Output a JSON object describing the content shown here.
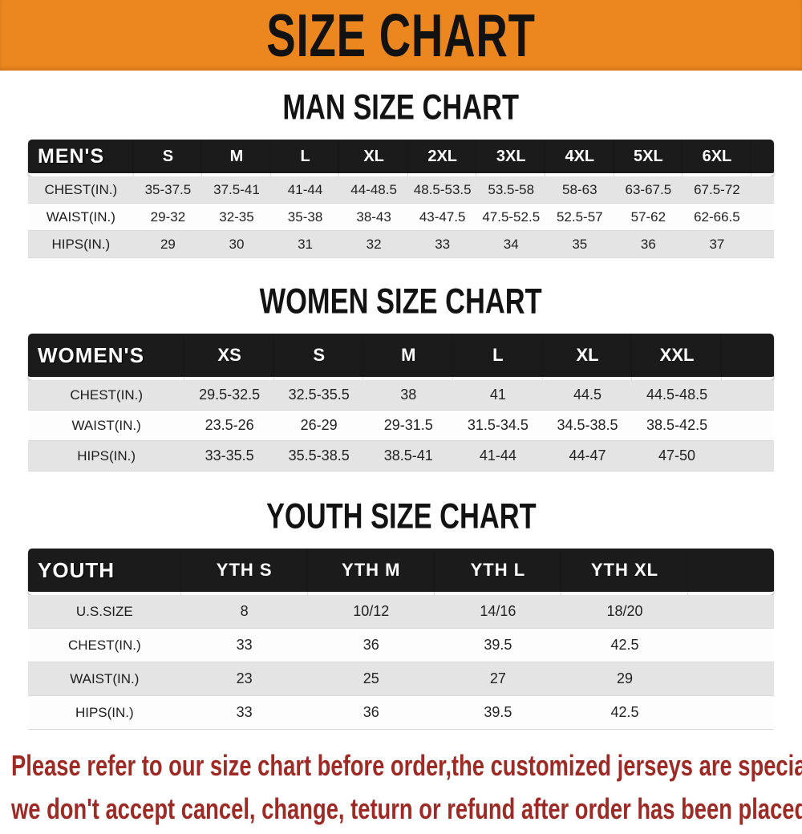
{
  "banner": {
    "title": "SIZE CHART",
    "background_color": "#EC861E",
    "text_color": "#121212"
  },
  "sections": [
    {
      "title": "MAN SIZE CHART",
      "table": {
        "header_label": "MEN'S",
        "columns": [
          "S",
          "M",
          "L",
          "XL",
          "2XL",
          "3XL",
          "4XL",
          "5XL",
          "6XL"
        ],
        "rows": [
          {
            "label": "CHEST(IN.)",
            "values": [
              "35-37.5",
              "37.5-41",
              "41-44",
              "44-48.5",
              "48.5-53.5",
              "53.5-58",
              "58-63",
              "63-67.5",
              "67.5-72"
            ]
          },
          {
            "label": "WAIST(IN.)",
            "values": [
              "29-32",
              "32-35",
              "35-38",
              "38-43",
              "43-47.5",
              "47.5-52.5",
              "52.5-57",
              "57-62",
              "62-66.5"
            ]
          },
          {
            "label": "HIPS(IN.)",
            "values": [
              "29",
              "30",
              "31",
              "32",
              "33",
              "34",
              "35",
              "36",
              "37"
            ]
          }
        ]
      }
    },
    {
      "title": "WOMEN SIZE CHART",
      "table": {
        "header_label": "WOMEN'S",
        "columns": [
          "XS",
          "S",
          "M",
          "L",
          "XL",
          "XXL"
        ],
        "rows": [
          {
            "label": "CHEST(IN.)",
            "values": [
              "29.5-32.5",
              "32.5-35.5",
              "38",
              "41",
              "44.5",
              "44.5-48.5"
            ]
          },
          {
            "label": "WAIST(IN.)",
            "values": [
              "23.5-26",
              "26-29",
              "29-31.5",
              "31.5-34.5",
              "34.5-38.5",
              "38.5-42.5"
            ]
          },
          {
            "label": "HIPS(IN.)",
            "values": [
              "33-35.5",
              "35.5-38.5",
              "38.5-41",
              "41-44",
              "44-47",
              "47-50"
            ]
          }
        ]
      }
    },
    {
      "title": "YOUTH SIZE CHART",
      "table": {
        "header_label": "YOUTH",
        "columns": [
          "YTH S",
          "YTH M",
          "YTH L",
          "YTH XL"
        ],
        "rows": [
          {
            "label": "U.S.SIZE",
            "values": [
              "8",
              "10/12",
              "14/16",
              "18/20"
            ]
          },
          {
            "label": "CHEST(IN.)",
            "values": [
              "33",
              "36",
              "39.5",
              "42.5"
            ]
          },
          {
            "label": "WAIST(IN.)",
            "values": [
              "23",
              "25",
              "27",
              "29"
            ]
          },
          {
            "label": "HIPS(IN.)",
            "values": [
              "33",
              "36",
              "39.5",
              "42.5"
            ]
          }
        ]
      }
    }
  ],
  "footer": {
    "line1": "Please refer to our size chart before order,the customized jerseys are special products,",
    "line2": "we don't accept cancel, change, teturn or refund after order has been placed!",
    "text_color": "#9d2a24"
  }
}
